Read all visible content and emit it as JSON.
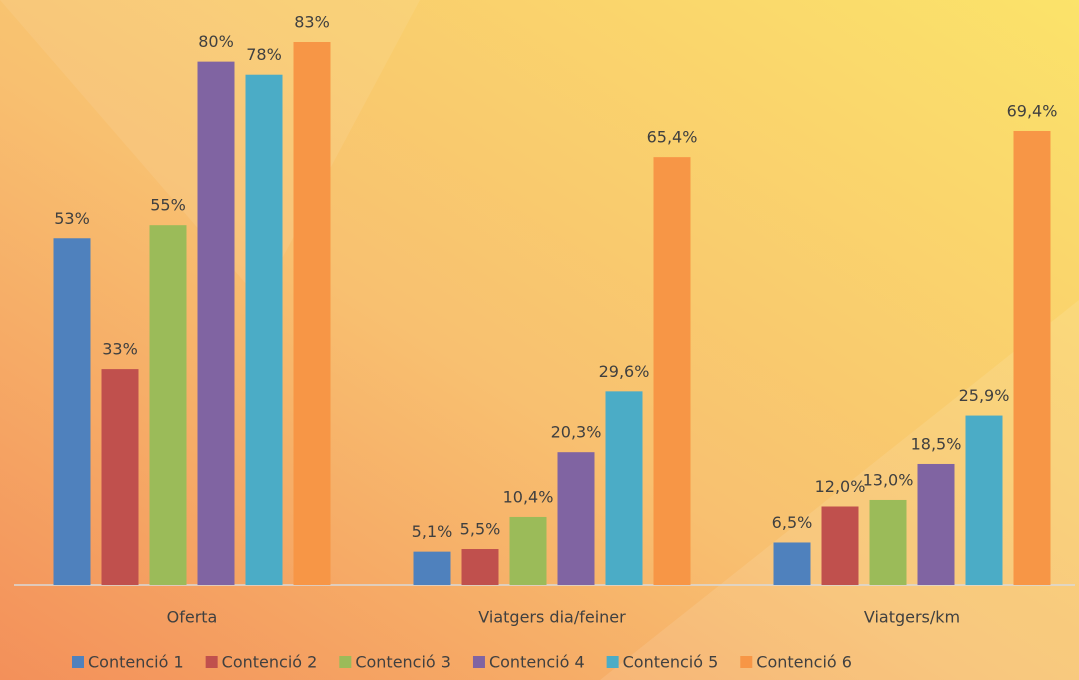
{
  "chart_data": {
    "type": "bar",
    "categories": [
      "Oferta",
      "Viatgers dia/feiner",
      "Viatgers/km"
    ],
    "series": [
      {
        "name": "Contenció 1",
        "color": "#4f81bd",
        "values": [
          53,
          5.1,
          6.5
        ],
        "value_labels": [
          "53%",
          "5,1%",
          "6,5%"
        ]
      },
      {
        "name": "Contenció 2",
        "color": "#c0504d",
        "values": [
          33,
          5.5,
          12.0
        ],
        "value_labels": [
          "33%",
          "5,5%",
          "12,0%"
        ]
      },
      {
        "name": "Contenció 3",
        "color": "#9bbb59",
        "values": [
          55,
          10.4,
          13.0
        ],
        "value_labels": [
          "55%",
          "10,4%",
          "13,0%"
        ]
      },
      {
        "name": "Contenció 4",
        "color": "#8064a2",
        "values": [
          80,
          20.3,
          18.5
        ],
        "value_labels": [
          "80%",
          "20,3%",
          "18,5%"
        ]
      },
      {
        "name": "Contenció 5",
        "color": "#4bacc6",
        "values": [
          78,
          29.6,
          25.9
        ],
        "value_labels": [
          "78%",
          "29,6%",
          "25,9%"
        ]
      },
      {
        "name": "Contenció 6",
        "color": "#f79646",
        "values": [
          83,
          65.4,
          69.4
        ],
        "value_labels": [
          "83%",
          "65,4%",
          "69,4%"
        ]
      }
    ]
  }
}
